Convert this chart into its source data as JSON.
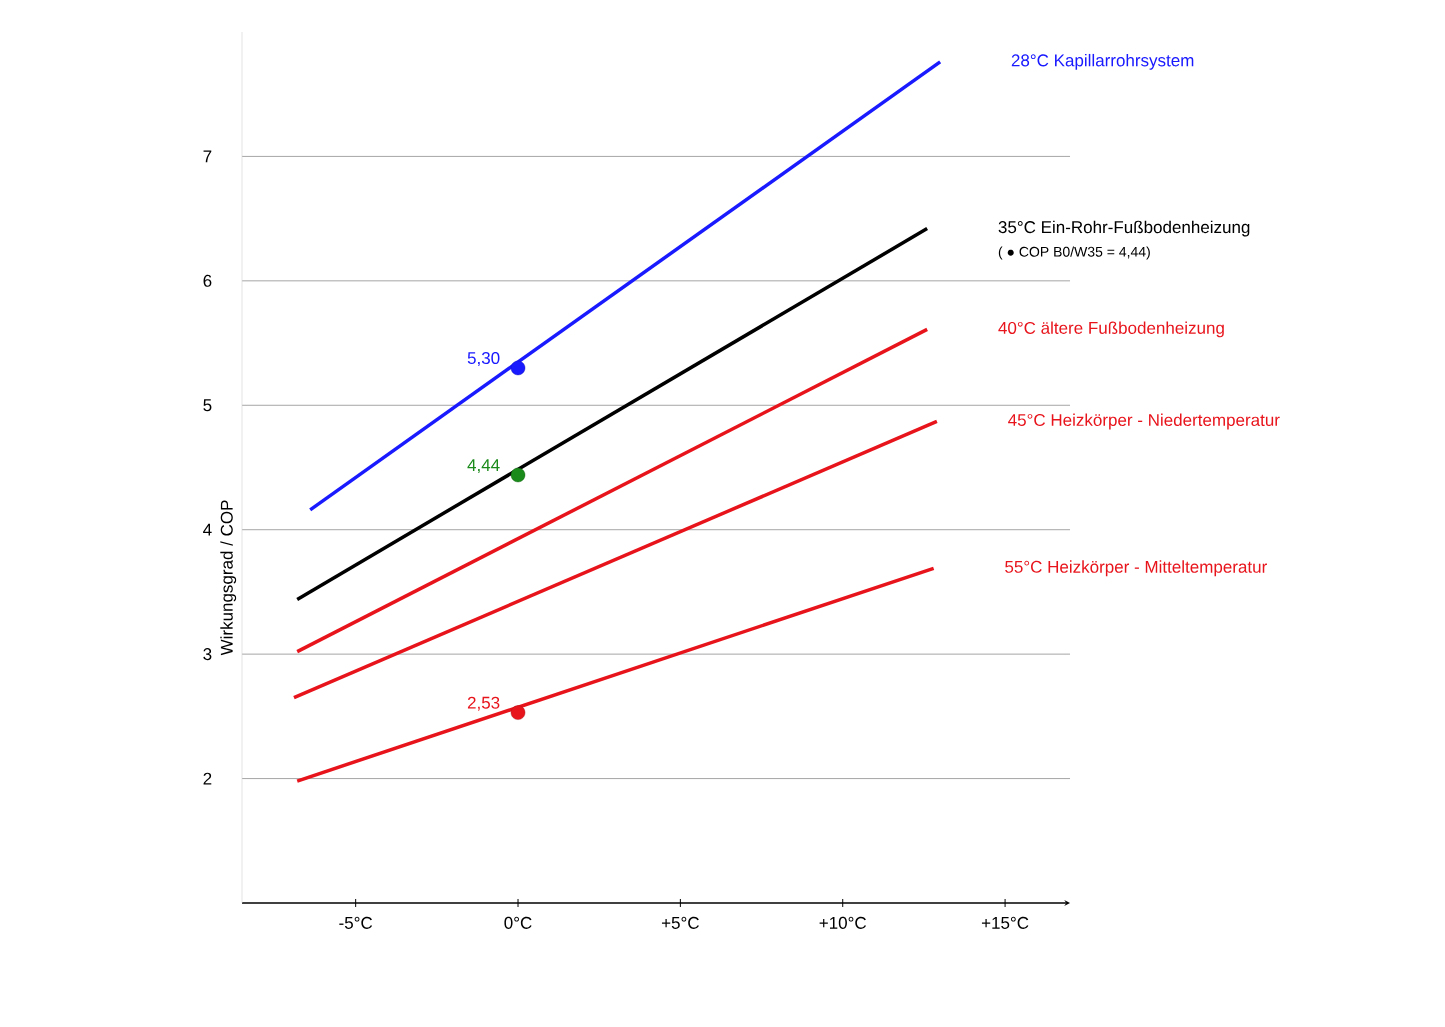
{
  "chart_data": {
    "type": "line",
    "ylabel": "Wirkungsgrad / COP",
    "xlim": [
      -8.5,
      17
    ],
    "ylim": [
      1,
      8
    ],
    "xticks": [
      {
        "value": -5,
        "label": "-5°C"
      },
      {
        "value": 0,
        "label": "0°C"
      },
      {
        "value": 5,
        "label": "+5°C"
      },
      {
        "value": 10,
        "label": "+10°C"
      },
      {
        "value": 15,
        "label": "+15°C"
      }
    ],
    "yticks": [
      2,
      3,
      4,
      5,
      6,
      7
    ],
    "grid": "y",
    "annotations": [
      "( ● COP B0/W35 = 4,44)"
    ],
    "series": [
      {
        "name": "28°C Kapillarrohrsystem",
        "color": "#1a1aff",
        "x": [
          -6.4,
          13.0
        ],
        "values": [
          4.16,
          7.76
        ]
      },
      {
        "name": "35°C Ein-Rohr-Fußbodenheizung",
        "color": "#000000",
        "x": [
          -6.8,
          12.6
        ],
        "values": [
          3.44,
          6.42
        ]
      },
      {
        "name": "40°C ältere Fußbodenheizung",
        "color": "#e8141c",
        "x": [
          -6.8,
          12.6
        ],
        "values": [
          3.02,
          5.61
        ]
      },
      {
        "name": "45°C Heizkörper - Niedertemperatur",
        "color": "#e8141c",
        "x": [
          -6.9,
          12.9
        ],
        "values": [
          2.65,
          4.87
        ]
      },
      {
        "name": "55°C Heizkörper - Mitteltemperatur",
        "color": "#e8141c",
        "x": [
          -6.8,
          12.8
        ],
        "values": [
          1.98,
          3.69
        ]
      },
      {
        "type": "scatter",
        "color": "#1a1aff",
        "x": [
          0
        ],
        "values": [
          5.3
        ],
        "value_labels": [
          "5,30"
        ]
      },
      {
        "type": "scatter",
        "color": "#1a8a1a",
        "x": [
          0
        ],
        "values": [
          4.44
        ],
        "value_labels": [
          "4,44"
        ]
      },
      {
        "type": "scatter",
        "color": "#e8141c",
        "x": [
          0
        ],
        "values": [
          2.53
        ],
        "value_labels": [
          "2,53"
        ]
      }
    ]
  }
}
